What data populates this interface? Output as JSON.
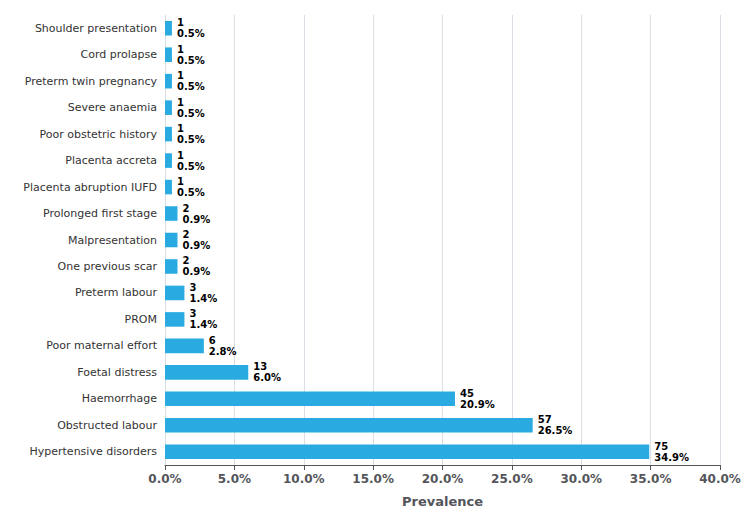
{
  "chart_data": {
    "type": "bar",
    "orientation": "horizontal",
    "xlabel": "Prevalence",
    "categories": [
      "Hypertensive disorders",
      "Obstructed labour",
      "Haemorrhage",
      "Foetal distress",
      "Poor maternal effort",
      "PROM",
      "Preterm labour",
      "One previous scar",
      "Malpresentation",
      "Prolonged first stage",
      "Placenta abruption IUFD",
      "Placenta accreta",
      "Poor obstetric history",
      "Severe anaemia",
      "Preterm twin pregnancy",
      "Cord prolapse",
      "Shoulder presentation"
    ],
    "values": [
      34.9,
      26.5,
      20.9,
      6.0,
      2.8,
      1.4,
      1.4,
      0.9,
      0.9,
      0.9,
      0.5,
      0.5,
      0.5,
      0.5,
      0.5,
      0.5,
      0.5
    ],
    "value_labels": [
      "34.9%",
      "26.5%",
      "20.9%",
      "6.0%",
      "2.8%",
      "1.4%",
      "1.4%",
      "0.9%",
      "0.9%",
      "0.9%",
      "0.5%",
      "0.5%",
      "0.5%",
      "0.5%",
      "0.5%",
      "0.5%",
      "0.5%"
    ],
    "counts": [
      75,
      57,
      45,
      13,
      6,
      3,
      3,
      2,
      2,
      2,
      1,
      1,
      1,
      1,
      1,
      1,
      1
    ],
    "data_labels": true,
    "color": "#29ABE2",
    "xlim": [
      0,
      40
    ],
    "xticks": [
      {
        "value": 0,
        "label": "0.0%"
      },
      {
        "value": 5,
        "label": "5.0%"
      },
      {
        "value": 10,
        "label": "10.0%"
      },
      {
        "value": 15,
        "label": "15.0%"
      },
      {
        "value": 20,
        "label": "20.0%"
      },
      {
        "value": 25,
        "label": "25.0%"
      },
      {
        "value": 30,
        "label": "30.0%"
      },
      {
        "value": 35,
        "label": "35.0%"
      },
      {
        "value": 40,
        "label": "40.0%"
      }
    ],
    "grid": true
  }
}
